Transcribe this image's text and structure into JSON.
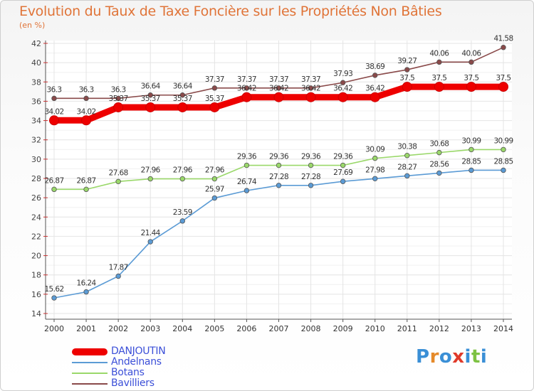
{
  "title": "Evolution du Taux de Taxe Foncière sur les Propriétés Non Bâties",
  "subtitle": "(en %)",
  "logo_text": "Proxiti",
  "chart_data": {
    "type": "line",
    "title": "Evolution du Taux de Taxe Foncière sur les Propriétés Non Bâties",
    "ylabel": "(en %)",
    "xlabel": "",
    "ylim": [
      14,
      42
    ],
    "yticks": [
      "14",
      "16",
      "18",
      "20",
      "22",
      "24",
      "26",
      "28",
      "30",
      "32",
      "34",
      "36",
      "38",
      "40",
      "42"
    ],
    "x": [
      "2000",
      "2001",
      "2002",
      "2003",
      "2004",
      "2005",
      "2006",
      "2007",
      "2008",
      "2009",
      "2010",
      "2011",
      "2012",
      "2013",
      "2014"
    ],
    "grid": true,
    "legend_position": "bottom-left",
    "series": [
      {
        "name": "DANJOUTIN",
        "color": "#ee0000",
        "values": [
          34.02,
          34.02,
          35.37,
          35.37,
          35.37,
          35.37,
          36.42,
          36.42,
          36.42,
          36.42,
          36.42,
          37.5,
          37.5,
          37.5,
          37.5
        ],
        "labels": [
          "34.02",
          "34.02",
          "35.37",
          "35.37",
          "35.37",
          "35.37",
          "36.42",
          "36.42",
          "36.42",
          "36.42",
          "36.42",
          "37.5",
          "37.5",
          "37.5",
          "37.5"
        ]
      },
      {
        "name": "Andelnans",
        "color": "#5b9bd5",
        "values": [
          15.62,
          16.24,
          17.87,
          21.44,
          23.59,
          25.97,
          26.74,
          27.28,
          27.28,
          27.69,
          27.98,
          28.27,
          28.56,
          28.85,
          28.85
        ],
        "labels": [
          "15.62",
          "16.24",
          "17.87",
          "21.44",
          "23.59",
          "25.97",
          "26.74",
          "27.28",
          "27.28",
          "27.69",
          "27.98",
          "28.27",
          "28.56",
          "28.85",
          "28.85"
        ]
      },
      {
        "name": "Botans",
        "color": "#9ad86a",
        "values": [
          26.87,
          26.87,
          27.68,
          27.96,
          27.96,
          27.96,
          29.36,
          29.36,
          29.36,
          29.36,
          30.09,
          30.38,
          30.68,
          30.99,
          30.99
        ],
        "labels": [
          "26.87",
          "26.87",
          "27.68",
          "27.96",
          "27.96",
          "27.96",
          "29.36",
          "29.36",
          "29.36",
          "29.36",
          "30.09",
          "30.38",
          "30.68",
          "30.99",
          "30.99"
        ]
      },
      {
        "name": "Bavilliers",
        "color": "#8a4a4a",
        "values": [
          36.3,
          36.3,
          36.3,
          36.64,
          36.64,
          37.37,
          37.37,
          37.37,
          37.37,
          37.93,
          38.69,
          39.27,
          40.06,
          40.06,
          41.58
        ],
        "labels": [
          "36.3",
          "36.3",
          "36.3",
          "36.64",
          "36.64",
          "37.37",
          "37.37",
          "37.37",
          "37.37",
          "37.93",
          "38.69",
          "39.27",
          "40.06",
          "40.06",
          "41.58"
        ]
      }
    ]
  }
}
